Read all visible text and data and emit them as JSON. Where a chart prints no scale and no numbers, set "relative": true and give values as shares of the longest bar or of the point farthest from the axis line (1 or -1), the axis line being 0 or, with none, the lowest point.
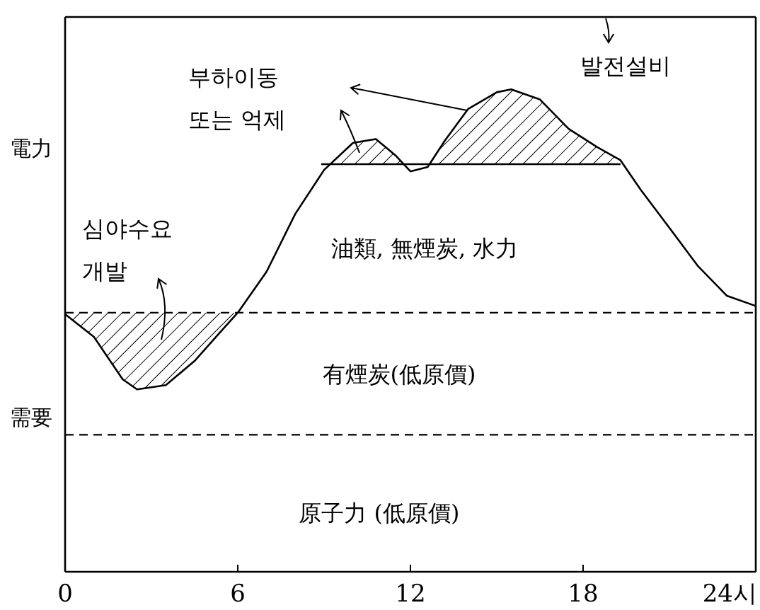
{
  "chart_data": {
    "type": "line",
    "relative": true,
    "ylabel": "電力",
    "grid": false,
    "marker": "none",
    "xlim": [
      0,
      24
    ],
    "xticks": [
      0,
      6,
      12,
      18,
      {
        "value": 24,
        "label": "24시"
      }
    ],
    "series": [
      {
        "color": "#000000",
        "x": [
          0,
          1,
          2,
          2.5,
          3.5,
          4.5,
          5.5,
          6,
          7,
          8,
          9,
          10,
          10.8,
          11.5,
          12,
          12.6,
          13.2,
          14,
          15,
          15.5,
          16.5,
          17.5,
          18.5,
          19.3,
          20,
          21,
          22,
          23,
          24
        ],
        "values": [
          0.534,
          0.487,
          0.399,
          0.378,
          0.387,
          0.437,
          0.504,
          0.537,
          0.622,
          0.742,
          0.833,
          0.889,
          0.897,
          0.862,
          0.83,
          0.839,
          0.894,
          0.959,
          0.994,
          1,
          0.979,
          0.918,
          0.88,
          0.853,
          0.792,
          0.713,
          0.633,
          0.572,
          0.551
        ]
      },
      {
        "color": "#000000",
        "x": [
          8.9,
          19.3
        ],
        "values": [
          0.845,
          0.845
        ]
      }
    ],
    "ref_lines": [
      {
        "axis": "y",
        "value": 0.537,
        "line_style": "dashed"
      },
      {
        "axis": "y",
        "value": 0.284,
        "line_style": "dashed"
      },
      {
        "axis": "y",
        "value": 1.15,
        "line_style": "solid"
      }
    ],
    "annotations": [
      "발전설비",
      "부하이동\n또는 억제",
      "심야수요\n개발",
      "油類, 無煙炭, 水力",
      "有煙炭(低原價)",
      "原子力 (低原價)",
      "需要"
    ]
  }
}
